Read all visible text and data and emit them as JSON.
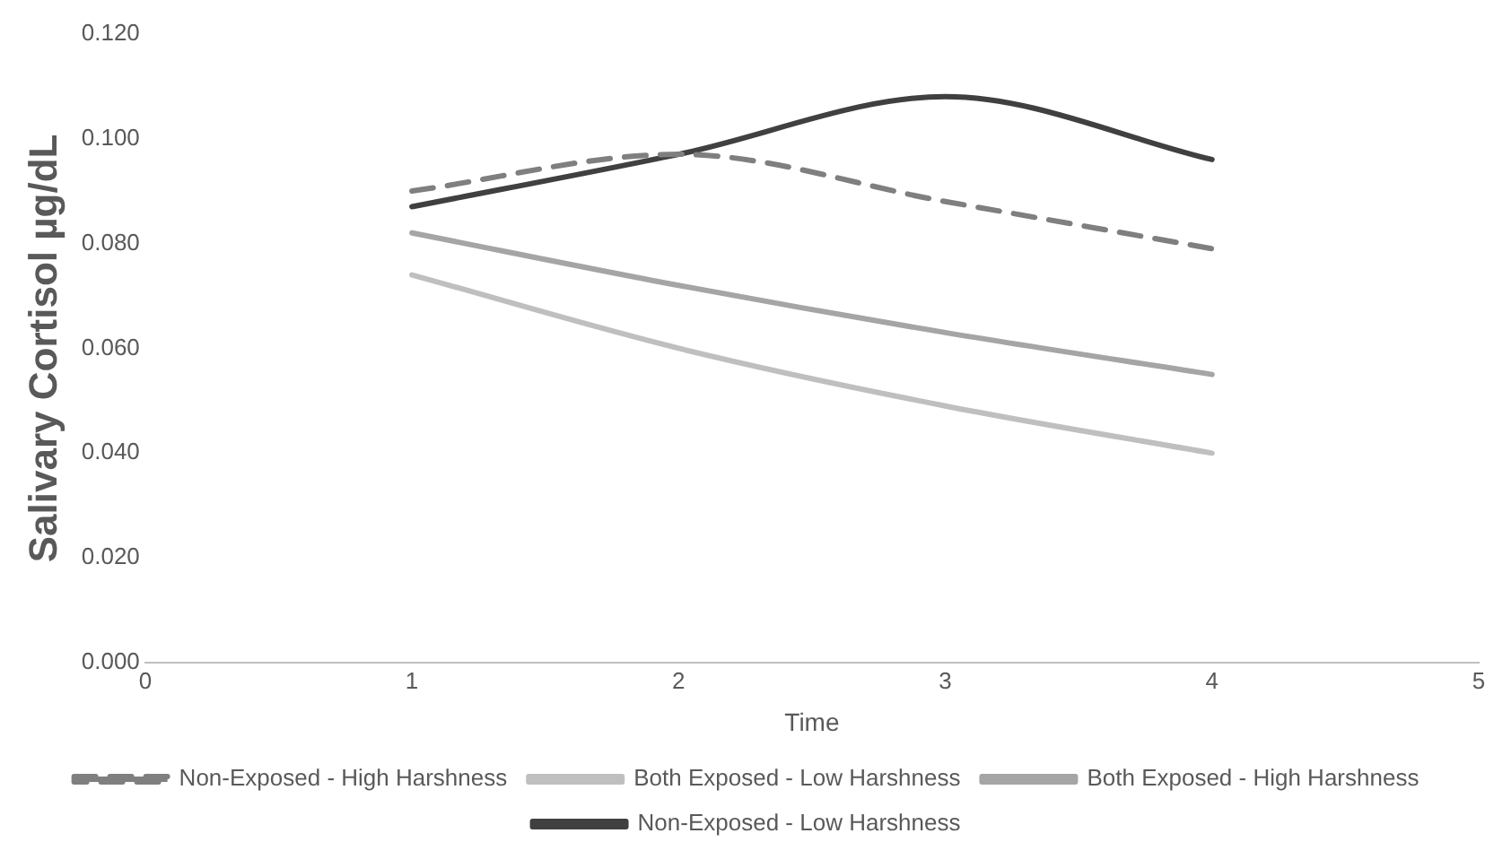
{
  "chart_data": {
    "type": "line",
    "xlabel": "Time",
    "ylabel": "Salivary Cortisol µg/dL",
    "x": [
      1,
      2,
      3,
      4
    ],
    "xlim": [
      0,
      5
    ],
    "xticks": [
      0,
      1,
      2,
      3,
      4,
      5
    ],
    "ylim": [
      0,
      0.12
    ],
    "yticks": [
      {
        "value": 0,
        "label": "0.000"
      },
      {
        "value": 0.02,
        "label": "0.020"
      },
      {
        "value": 0.04,
        "label": "0.040"
      },
      {
        "value": 0.06,
        "label": "0.060"
      },
      {
        "value": 0.08,
        "label": "0.080"
      },
      {
        "value": 0.1,
        "label": "0.100"
      },
      {
        "value": 0.12,
        "label": "0.120"
      }
    ],
    "grid": false,
    "legend": "bottom",
    "marker": "none",
    "series": [
      {
        "name": "Non-Exposed - High Harshness",
        "color": "#7f7f7f",
        "line_style": "dashed",
        "values": [
          0.09,
          0.097,
          0.088,
          0.079
        ]
      },
      {
        "name": "Both Exposed - Low Harshness",
        "color": "#bfbfbf",
        "values": [
          0.074,
          0.06,
          0.049,
          0.04
        ]
      },
      {
        "name": "Both Exposed - High Harshness",
        "color": "#a5a5a5",
        "values": [
          0.082,
          0.072,
          0.063,
          0.055
        ]
      },
      {
        "name": "Non-Exposed - Low Harshness",
        "color": "#404040",
        "values": [
          0.087,
          0.097,
          0.108,
          0.096
        ]
      }
    ]
  }
}
